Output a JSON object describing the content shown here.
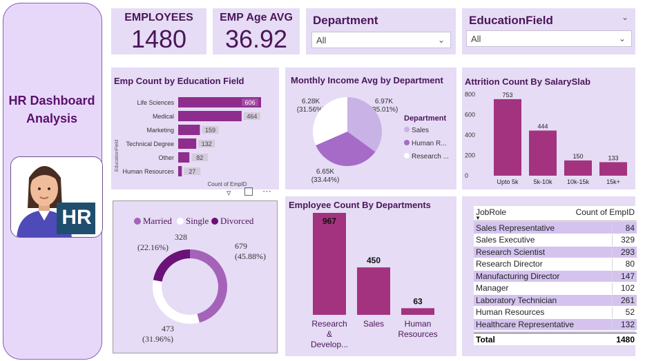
{
  "sidebar": {
    "title_line1": "HR Dashboard",
    "title_line2": "Analysis",
    "badge_text": "HR"
  },
  "kpis": {
    "employees_label": "EMPLOYEES",
    "employees_value": "1480",
    "age_label": "EMP Age AVG",
    "age_value": "36.92"
  },
  "slicers": {
    "department": {
      "title": "Department",
      "value": "All"
    },
    "education": {
      "title": "EducationField",
      "value": "All"
    }
  },
  "edu_chart": {
    "title": "Emp Count by Education Field",
    "xlabel": "Count of EmpID",
    "ylabel": "EducationField"
  },
  "income_chart": {
    "title": "Monthly Income Avg by Department",
    "legend_title": "Department",
    "legend": [
      "Sales",
      "Human R...",
      "Research ..."
    ],
    "labels": [
      {
        "value": "6.97K",
        "pct": "(35.01%)"
      },
      {
        "value": "6.65K",
        "pct": "(33.44%)"
      },
      {
        "value": "6.28K",
        "pct": "(31.56%)"
      }
    ]
  },
  "attrition_chart": {
    "title": "Attrition Count By SalarySlab"
  },
  "marital_chart": {
    "legend": [
      "Married",
      "Single",
      "Divorced"
    ],
    "labels": [
      {
        "value": "679",
        "pct": "(45.88%)"
      },
      {
        "value": "473",
        "pct": "(31.96%)"
      },
      {
        "value": "328",
        "pct": "(22.16%)"
      }
    ]
  },
  "dept_chart": {
    "title": "Employee Count By Departments",
    "category_lines": [
      [
        "Research",
        "&",
        "Develop..."
      ],
      [
        "Sales"
      ],
      [
        "Human",
        "Resources"
      ]
    ]
  },
  "jobrole_table": {
    "col1": "JobRole",
    "col2": "Count of EmpID",
    "rows": [
      {
        "role": "Sales Representative",
        "count": "84"
      },
      {
        "role": "Sales Executive",
        "count": "329"
      },
      {
        "role": "Research Scientist",
        "count": "293"
      },
      {
        "role": "Research Director",
        "count": "80"
      },
      {
        "role": "Manufacturing Director",
        "count": "147"
      },
      {
        "role": "Manager",
        "count": "102"
      },
      {
        "role": "Laboratory Technician",
        "count": "261"
      },
      {
        "role": "Human Resources",
        "count": "52"
      },
      {
        "role": "Healthcare Representative",
        "count": "132"
      }
    ],
    "total_label": "Total",
    "total_value": "1480"
  },
  "colors": {
    "panel": "#e6dcf5",
    "bar_purple": "#8e2d8e",
    "bar_magenta": "#a3337f",
    "pie_light": "#c8b2e6",
    "pie_mid": "#a56bc6",
    "donut_married": "#a463b8",
    "donut_divorced": "#6a1278"
  },
  "chart_data": [
    {
      "type": "bar",
      "orientation": "horizontal",
      "title": "Emp Count by Education Field",
      "categories": [
        "Life Sciences",
        "Medical",
        "Marketing",
        "Technical Degree",
        "Other",
        "Human Resources"
      ],
      "values": [
        606,
        464,
        159,
        132,
        82,
        27
      ],
      "xlabel": "Count of EmpID",
      "ylabel": "EducationField"
    },
    {
      "type": "pie",
      "title": "Monthly Income Avg by Department",
      "categories": [
        "Sales",
        "Human Resources",
        "Research & Development"
      ],
      "values": [
        6970,
        6650,
        6280
      ],
      "percents": [
        35.01,
        33.44,
        31.56
      ],
      "legend": "right"
    },
    {
      "type": "bar",
      "title": "Attrition Count By SalarySlab",
      "categories": [
        "Upto 5k",
        "5k-10k",
        "10k-15k",
        "15k+"
      ],
      "values": [
        753,
        444,
        150,
        133
      ],
      "yticks": [
        0,
        200,
        400,
        600,
        800
      ],
      "ylim": [
        0,
        800
      ]
    },
    {
      "type": "pie",
      "style": "donut",
      "categories": [
        "Married",
        "Single",
        "Divorced"
      ],
      "values": [
        679,
        473,
        328
      ],
      "percents": [
        45.88,
        31.96,
        22.16
      ],
      "legend": "top"
    },
    {
      "type": "bar",
      "title": "Employee Count By Departments",
      "categories": [
        "Research & Develop...",
        "Sales",
        "Human Resources"
      ],
      "values": [
        967,
        450,
        63
      ]
    }
  ]
}
